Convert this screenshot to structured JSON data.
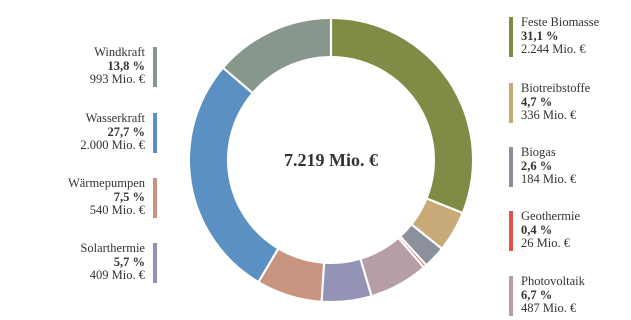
{
  "chart_data": {
    "type": "donut",
    "total_label": "7.219 Mio. €",
    "total": 7219,
    "unit": "Mio. €",
    "slices": [
      {
        "name": "Feste Biomasse",
        "pct": "31,1 %",
        "amount": "2.244 Mio. €",
        "value": 2244,
        "color": "#7f8c45"
      },
      {
        "name": "Biotreibstoffe",
        "pct": "4,7 %",
        "amount": "336 Mio. €",
        "value": 336,
        "color": "#c8aa78"
      },
      {
        "name": "Biogas",
        "pct": "2,6 %",
        "amount": "184 Mio. €",
        "value": 184,
        "color": "#8c909c"
      },
      {
        "name": "Geothermie",
        "pct": "0,4 %",
        "amount": "26 Mio. €",
        "value": 26,
        "color": "#e0524a"
      },
      {
        "name": "Photovoltaik",
        "pct": "6,7 %",
        "amount": "487 Mio. €",
        "value": 487,
        "color": "#b79ea6"
      },
      {
        "name": "Solarthermie",
        "pct": "5,7 %",
        "amount": "409 Mio. €",
        "value": 409,
        "color": "#9393b6"
      },
      {
        "name": "Wärmepumpen",
        "pct": "7,5 %",
        "amount": "540 Mio. €",
        "value": 540,
        "color": "#c89480"
      },
      {
        "name": "Wasserkraft",
        "pct": "27,7 %",
        "amount": "2.000 Mio. €",
        "value": 2000,
        "color": "#5b90c2"
      },
      {
        "name": "Windkraft",
        "pct": "13,8 %",
        "amount": "993 Mio. €",
        "value": 993,
        "color": "#87978c"
      }
    ]
  }
}
